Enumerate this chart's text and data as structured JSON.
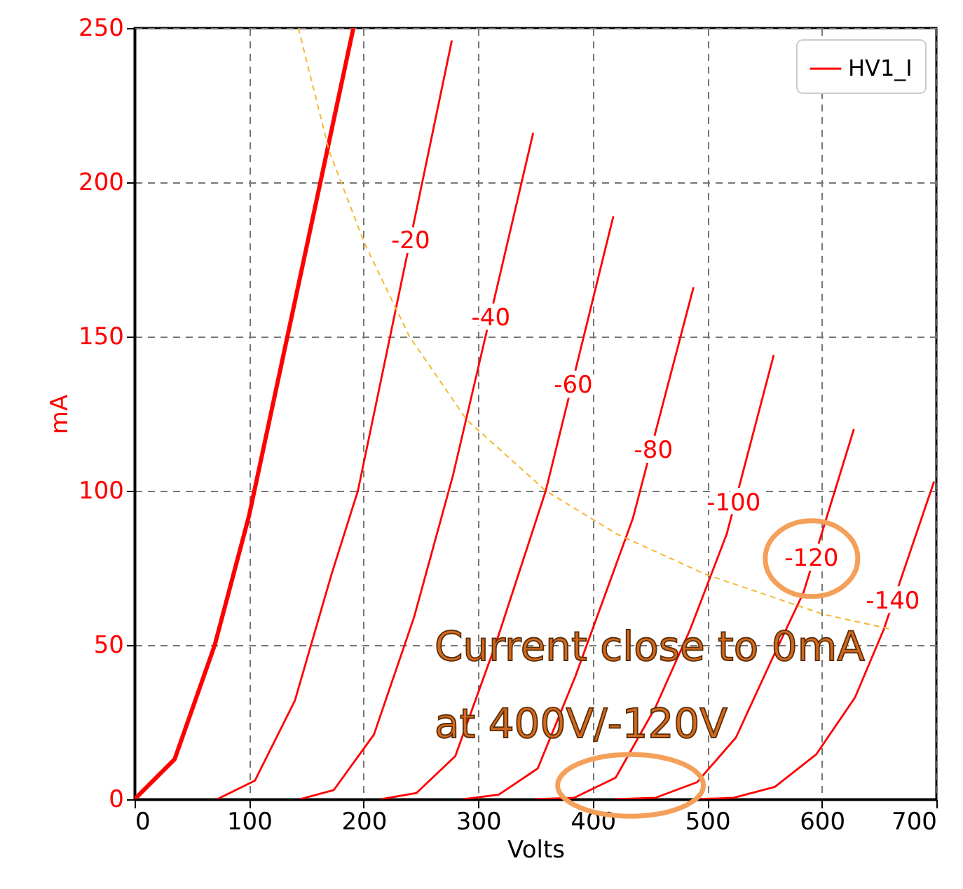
{
  "chart_data": {
    "type": "line",
    "xlabel": "Volts",
    "ylabel": "mA",
    "xlim": [
      0,
      700
    ],
    "ylim": [
      0,
      250
    ],
    "xticks": [
      0,
      100,
      200,
      300,
      400,
      500,
      600,
      700
    ],
    "yticks": [
      0,
      50,
      100,
      150,
      200,
      250
    ],
    "grid": true,
    "legend": "top right",
    "series": [
      {
        "name": "HV1_I",
        "color": "#ff0000",
        "x": [
          0,
          35,
          70,
          100,
          168,
          191
        ],
        "values": [
          0,
          13,
          50,
          92,
          210,
          250
        ]
      },
      {
        "color": "#ff0000",
        "x": [
          72,
          105,
          140,
          172,
          195,
          277
        ],
        "values": [
          0,
          6,
          32,
          73,
          100,
          246
        ]
      },
      {
        "color": "#ff0000",
        "x": [
          144,
          174,
          209,
          244,
          278,
          348
        ],
        "values": [
          0,
          3,
          21,
          59,
          105,
          216
        ]
      },
      {
        "color": "#ff0000",
        "x": [
          215,
          246,
          280,
          315,
          359,
          418
        ],
        "values": [
          0,
          2,
          14,
          50,
          100,
          189
        ]
      },
      {
        "color": "#ff0000",
        "x": [
          287,
          318,
          352,
          385,
          435,
          488
        ],
        "values": [
          0,
          1.5,
          10,
          40,
          91,
          166
        ]
      },
      {
        "color": "#ff0000",
        "x": [
          350,
          384,
          420,
          455,
          485,
          517,
          558
        ],
        "values": [
          0,
          0.5,
          7,
          30,
          55,
          86,
          144
        ]
      },
      {
        "color": "#ff0000",
        "x": [
          420,
          455,
          491,
          525,
          556,
          584,
          628
        ],
        "values": [
          0,
          0.5,
          5.5,
          20,
          45,
          67,
          120
        ]
      },
      {
        "color": "#ff0000",
        "x": [
          490,
          523,
          559,
          595,
          629,
          654,
          698
        ],
        "values": [
          0,
          0.5,
          4,
          14.5,
          33,
          55,
          103
        ]
      },
      {
        "type": "line",
        "color": "#f5b731",
        "line_style": "dashed",
        "x": [
          143,
          170,
          201,
          240,
          290,
          359,
          421,
          498,
          601,
          662
        ],
        "values": [
          250,
          210,
          180,
          150,
          123,
          100,
          86,
          73,
          60,
          55
        ]
      }
    ],
    "annotations": [
      {
        "text": "-20",
        "x": 241,
        "y": 181
      },
      {
        "text": "-40",
        "x": 311,
        "y": 156
      },
      {
        "text": "-60",
        "x": 383,
        "y": 134
      },
      {
        "text": "-80",
        "x": 453,
        "y": 113
      },
      {
        "text": "-100",
        "x": 523,
        "y": 96
      },
      {
        "text": "-120",
        "x": 591,
        "y": 78
      },
      {
        "text": "-140",
        "x": 662,
        "y": 64
      },
      "Current close to 0mA",
      "at 400V/-120V"
    ]
  }
}
